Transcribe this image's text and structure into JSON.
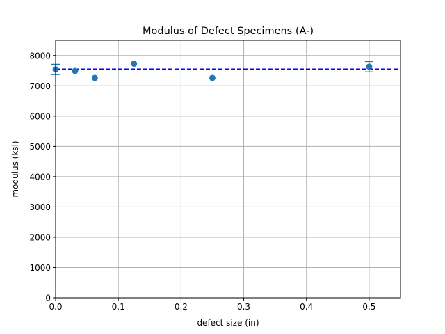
{
  "chart_data": {
    "type": "scatter",
    "title": "Modulus of Defect Specimens (A-)",
    "xlabel": "defect size (in)",
    "ylabel": "modulus (ksi)",
    "xlim": [
      0,
      0.55
    ],
    "ylim": [
      0,
      8500
    ],
    "xticks": [
      0,
      0.1,
      0.2,
      0.3,
      0.4,
      0.5
    ],
    "xtick_labels": [
      "0.0",
      "0.1",
      "0.2",
      "0.3",
      "0.4",
      "0.5"
    ],
    "yticks": [
      0,
      1000,
      2000,
      3000,
      4000,
      5000,
      6000,
      7000,
      8000
    ],
    "ytick_labels": [
      "0",
      "1000",
      "2000",
      "3000",
      "4000",
      "5000",
      "6000",
      "7000",
      "8000"
    ],
    "grid": true,
    "points": [
      {
        "x": 0.0,
        "y": 7540,
        "err": 170
      },
      {
        "x": 0.031,
        "y": 7490
      },
      {
        "x": 0.0625,
        "y": 7260
      },
      {
        "x": 0.125,
        "y": 7730
      },
      {
        "x": 0.25,
        "y": 7260
      },
      {
        "x": 0.5,
        "y": 7630,
        "err": 170
      }
    ],
    "reference_line": {
      "y": 7550,
      "style": "dashed"
    },
    "colors": {
      "points": "#1f77b4",
      "reference_line": "#0000ff",
      "grid": "#b0b0b0"
    }
  }
}
